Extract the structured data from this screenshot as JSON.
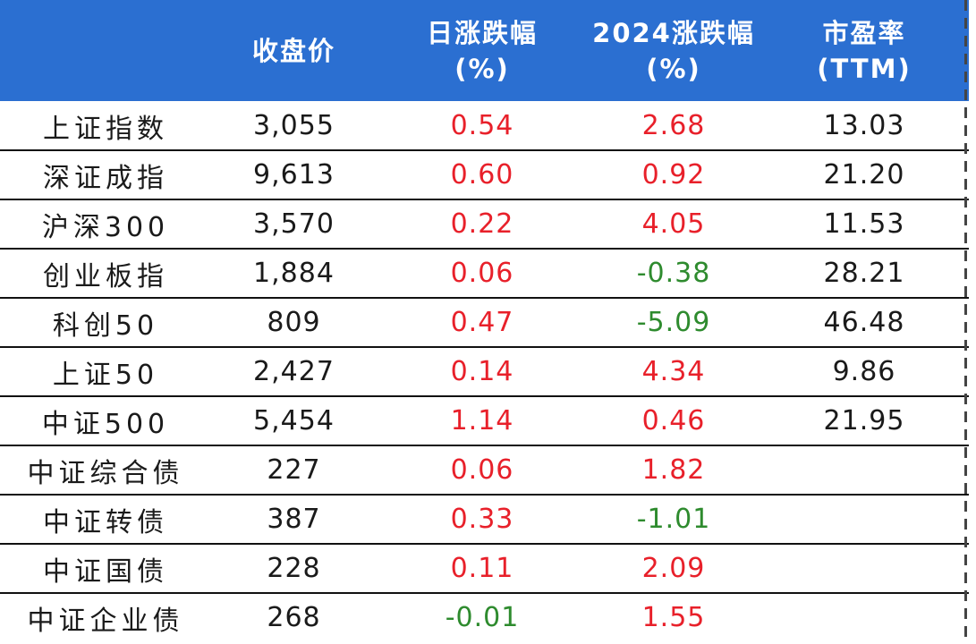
{
  "header": {
    "name_col": "",
    "close": "收盘价",
    "day_change_line1": "日涨跌幅",
    "day_change_line2": "(%)",
    "ytd_change_line1": "2024涨跌幅",
    "ytd_change_line2": "(%)",
    "pe_line1": "市盈率",
    "pe_line2": "(TTM)"
  },
  "colors": {
    "header_bg": "#2b6fd1",
    "positive": "#e8202a",
    "negative": "#2e8b2e"
  },
  "rows": [
    {
      "name": "上证指数",
      "close": "3,055",
      "day": "0.54",
      "ytd": "2.68",
      "pe": "13.03"
    },
    {
      "name": "深证成指",
      "close": "9,613",
      "day": "0.60",
      "ytd": "0.92",
      "pe": "21.20"
    },
    {
      "name": "沪深300",
      "close": "3,570",
      "day": "0.22",
      "ytd": "4.05",
      "pe": "11.53"
    },
    {
      "name": "创业板指",
      "close": "1,884",
      "day": "0.06",
      "ytd": "-0.38",
      "pe": "28.21"
    },
    {
      "name": "科创50",
      "close": "809",
      "day": "0.47",
      "ytd": "-5.09",
      "pe": "46.48"
    },
    {
      "name": "上证50",
      "close": "2,427",
      "day": "0.14",
      "ytd": "4.34",
      "pe": "9.86"
    },
    {
      "name": "中证500",
      "close": "5,454",
      "day": "1.14",
      "ytd": "0.46",
      "pe": "21.95"
    },
    {
      "name": "中证综合债",
      "close": "227",
      "day": "0.06",
      "ytd": "1.82",
      "pe": ""
    },
    {
      "name": "中证转债",
      "close": "387",
      "day": "0.33",
      "ytd": "-1.01",
      "pe": ""
    },
    {
      "name": "中证国债",
      "close": "228",
      "day": "0.11",
      "ytd": "2.09",
      "pe": ""
    },
    {
      "name": "中证企业债",
      "close": "268",
      "day": "-0.01",
      "ytd": "1.55",
      "pe": ""
    }
  ]
}
